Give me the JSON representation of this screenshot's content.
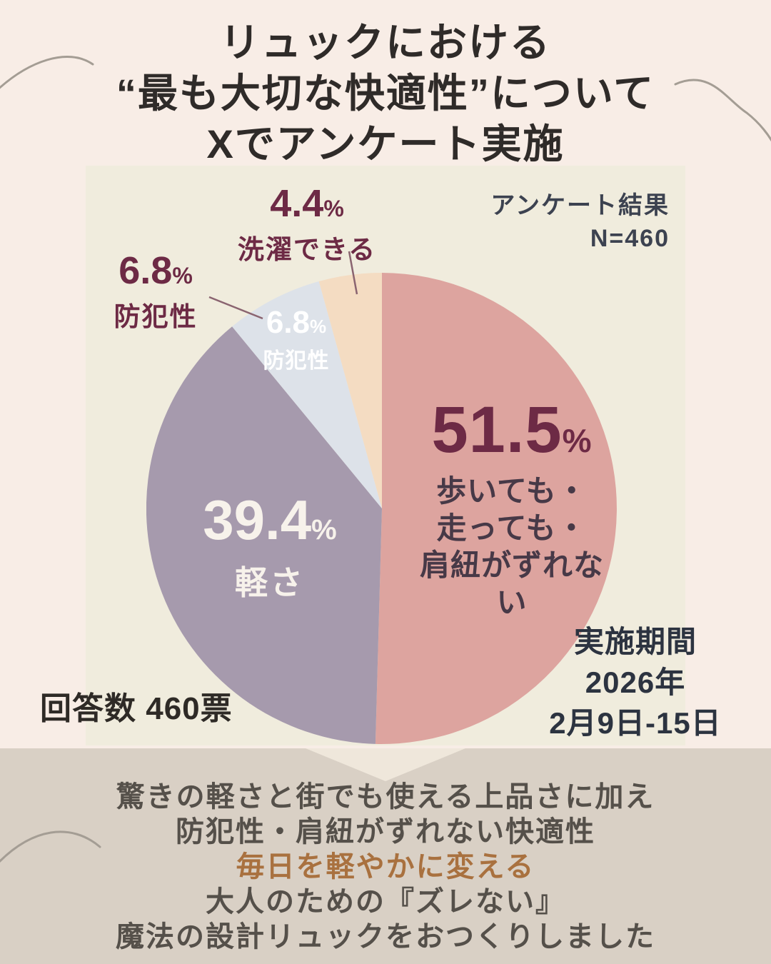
{
  "title": {
    "line1": "リュックにおける",
    "line2": "“最も大切な快適性”について",
    "line3": "Xでアンケート実施"
  },
  "survey": {
    "result_line1": "アンケート結果",
    "result_line2": "N=460",
    "responses": "回答数 460票",
    "period_line1": "実施期間",
    "period_line2": "2026年",
    "period_line3": "2月9日-15日"
  },
  "labels": {
    "percent": "%",
    "main_pct": "51.5",
    "main_line1": "歩いても・",
    "main_line2": "走っても・",
    "main_line3": "肩紐がずれない",
    "light_pct": "39.4",
    "light_name": "軽さ",
    "security_pct": "6.8",
    "security_name": "防犯性",
    "security_inner_pct": "6.8",
    "security_inner_name": "防犯性",
    "wash_pct": "4.4",
    "wash_name": "洗濯できる"
  },
  "chart_data": {
    "type": "pie",
    "title": "リュックにおける“最も大切な快適性” アンケート結果",
    "sample_label": "N=460",
    "responses_label": "回答数 460票",
    "period_label": "実施期間 2026年 2月9日-15日",
    "start_angle_deg": 0,
    "direction": "clockwise",
    "legend_position": "none",
    "slices": [
      {
        "label": "歩いても・走っても・肩紐がずれない",
        "value": 51.5,
        "color": "#dda49f"
      },
      {
        "label": "軽さ",
        "value": 39.4,
        "color": "#a69aad"
      },
      {
        "label": "防犯性",
        "value": 6.8,
        "color": "#dde2e9"
      },
      {
        "label": "洗濯できる",
        "value": 4.4,
        "color": "#f4dcc2"
      }
    ]
  },
  "footer": {
    "line1": "驚きの軽さと街でも使える上品さに加え",
    "line2": "防犯性・肩紐がずれない快適性",
    "line3": "毎日を軽やかに変える",
    "line4": "大人のための『ズレない』",
    "line5": "魔法の設計リュックをおつくりしました"
  },
  "colors": {
    "page_bg": "#f8ede6",
    "panel_bg": "#f0ecdd",
    "band_bg": "#d9d0c5",
    "maroon_label": "#6d2a45",
    "dark_text": "#2f2b29",
    "footer_accent": "#a9713f"
  }
}
